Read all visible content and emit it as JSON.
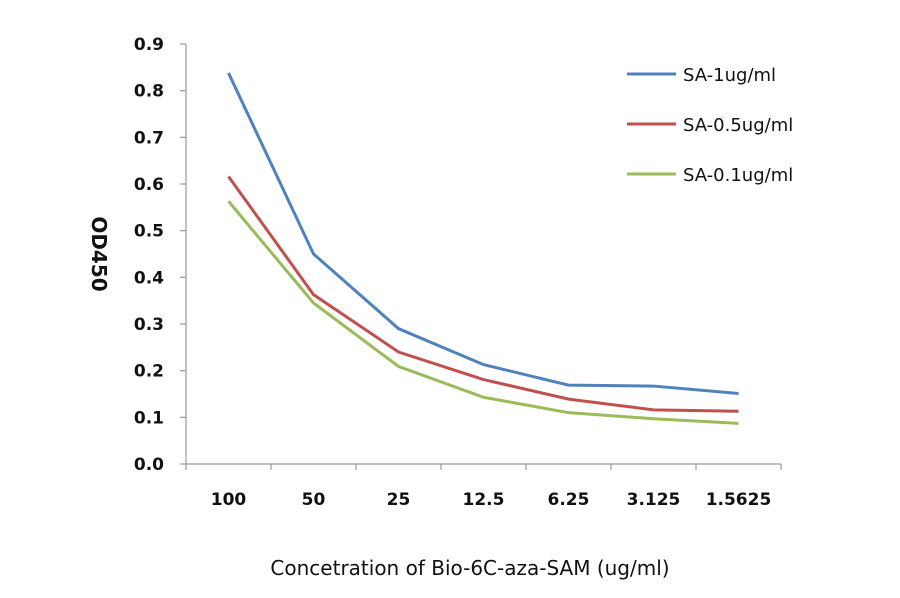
{
  "chart_data": {
    "type": "line",
    "title": "",
    "xlabel": "Concetration of Bio-6C-aza-SAM (ug/ml)",
    "ylabel": "OD450",
    "categories": [
      "100",
      "50",
      "25",
      "12.5",
      "6.25",
      "3.125",
      "1.5625"
    ],
    "ylim": [
      0,
      0.9
    ],
    "yticks": [
      "0.0",
      "0.1",
      "0.2",
      "0.3",
      "0.4",
      "0.5",
      "0.6",
      "0.7",
      "0.8",
      "0.9"
    ],
    "grid": false,
    "legend_position": "top-right",
    "series": [
      {
        "name": "SA-1ug/ml",
        "color": "#4f81bd",
        "values": [
          0.838,
          0.45,
          0.29,
          0.213,
          0.169,
          0.167,
          0.151
        ]
      },
      {
        "name": "SA-0.5ug/ml",
        "color": "#c0504d",
        "values": [
          0.616,
          0.363,
          0.24,
          0.181,
          0.139,
          0.116,
          0.113
        ]
      },
      {
        "name": "SA-0.1ug/ml",
        "color": "#9bbb59",
        "values": [
          0.563,
          0.345,
          0.209,
          0.143,
          0.11,
          0.097,
          0.087
        ]
      }
    ]
  }
}
